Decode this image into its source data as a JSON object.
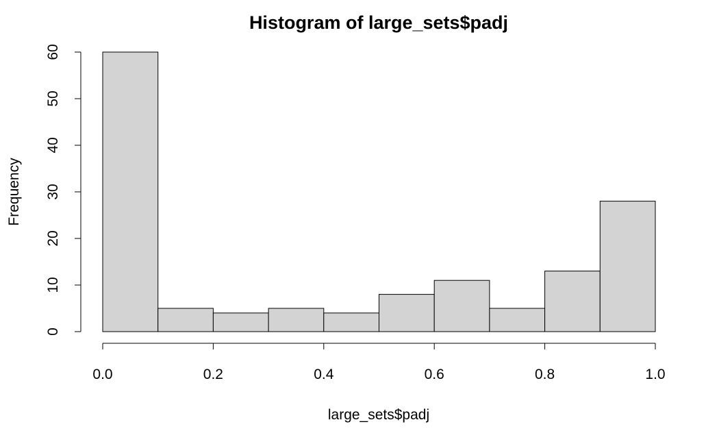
{
  "chart_data": {
    "type": "bar",
    "title": "Histogram of large_sets$padj",
    "xlabel": "large_sets$padj",
    "ylabel": "Frequency",
    "bins": [
      {
        "x0": 0.0,
        "x1": 0.1,
        "count": 60
      },
      {
        "x0": 0.1,
        "x1": 0.2,
        "count": 5
      },
      {
        "x0": 0.2,
        "x1": 0.3,
        "count": 4
      },
      {
        "x0": 0.3,
        "x1": 0.4,
        "count": 5
      },
      {
        "x0": 0.4,
        "x1": 0.5,
        "count": 4
      },
      {
        "x0": 0.5,
        "x1": 0.6,
        "count": 8
      },
      {
        "x0": 0.6,
        "x1": 0.7,
        "count": 11
      },
      {
        "x0": 0.7,
        "x1": 0.8,
        "count": 5
      },
      {
        "x0": 0.8,
        "x1": 0.9,
        "count": 13
      },
      {
        "x0": 0.9,
        "x1": 1.0,
        "count": 28
      }
    ],
    "xlim": [
      0,
      1
    ],
    "ylim": [
      0,
      60
    ],
    "xticks": [
      "0.0",
      "0.2",
      "0.4",
      "0.6",
      "0.8",
      "1.0"
    ],
    "yticks": [
      "0",
      "10",
      "20",
      "30",
      "40",
      "50",
      "60"
    ],
    "grid": false,
    "bar_fill": "#d3d3d3",
    "bar_stroke": "#000000"
  }
}
